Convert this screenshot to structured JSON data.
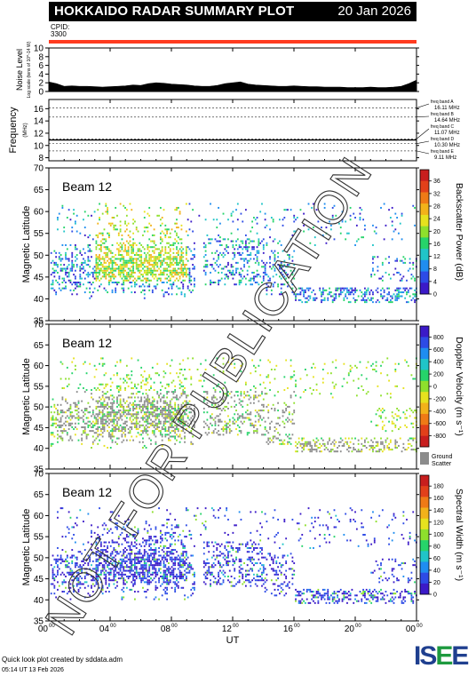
{
  "header": {
    "title": "HOKKAIDO RADAR SUMMARY PLOT",
    "date": "20 Jan 2026"
  },
  "cpid": {
    "label": "CPID:",
    "value": "3300"
  },
  "footer": {
    "credit": "Quick look plot created by sddata.adm",
    "timestamp": "05:14 UT 13 Feb 2026"
  },
  "logo": {
    "text1": "IS",
    "text2": "E",
    "text3": "E"
  },
  "watermark": "NOT FOR PUBLICATION",
  "chart_data": [
    {
      "type": "area",
      "ylabel": "Noise Level",
      "ylabel_sub": "Log scale (tens of 10^-14 W)",
      "yticks": [
        "0",
        "2",
        "4",
        "6",
        "8",
        "10"
      ],
      "ylim": [
        0,
        10
      ],
      "x": [
        0,
        0.5,
        1,
        1.5,
        2,
        2.5,
        3,
        3.5,
        4,
        4.5,
        5,
        5.5,
        6,
        6.5,
        7,
        7.5,
        8,
        8.5,
        9,
        9.5,
        10,
        10.5,
        11,
        11.5,
        12,
        12.5,
        13,
        13.5,
        14,
        14.5,
        15,
        15.5,
        16,
        16.5,
        17,
        17.5,
        18,
        18.5,
        19,
        19.5,
        20,
        20.5,
        21,
        21.5,
        22,
        22.5,
        23,
        23.5,
        24
      ],
      "values": [
        2.2,
        1.8,
        1.2,
        1.3,
        1.2,
        1.2,
        1.1,
        1.0,
        1.1,
        1.2,
        1.3,
        1.5,
        1.4,
        1.8,
        2.0,
        1.9,
        1.7,
        1.6,
        1.5,
        1.3,
        1.2,
        1.2,
        1.4,
        1.8,
        2.0,
        2.2,
        1.7,
        1.5,
        1.4,
        1.3,
        1.2,
        1.2,
        1.3,
        1.2,
        1.1,
        1.1,
        1.0,
        1.0,
        1.0,
        0.9,
        0.9,
        0.9,
        1.0,
        0.9,
        0.9,
        1.0,
        1.2,
        1.8,
        2.6
      ]
    },
    {
      "type": "line",
      "ylabel": "Frequency",
      "yunit": "(MHz)",
      "yticks": [
        "8",
        "10",
        "12",
        "14",
        "16"
      ],
      "ylim": [
        7.5,
        17.5
      ],
      "bands": [
        {
          "name": "freq band A",
          "label": "16.11 MHz",
          "value": 16.11
        },
        {
          "name": "freq band B",
          "label": "14.64 MHz",
          "value": 14.64
        },
        {
          "name": "freq band C",
          "label": "11.07 MHz",
          "value": 11.07
        },
        {
          "name": "freq band D",
          "label": "10.30 MHz",
          "value": 10.3
        },
        {
          "name": "freq band E",
          "label": "9.11 MHz",
          "value": 9.11
        }
      ],
      "observed": 10.9
    },
    {
      "type": "heatmap",
      "annotation": "Beam 12",
      "ylabel": "Magnetic Latitude",
      "yticks": [
        "35",
        "40",
        "45",
        "50",
        "55",
        "60",
        "65",
        "70"
      ],
      "ylim": [
        35,
        70
      ],
      "colorbar_label": "Backscatter Power (dB)",
      "colorbar_ticks": [
        "0",
        "4",
        "8",
        "12",
        "16",
        "20",
        "24",
        "28",
        "32",
        "36"
      ],
      "colorbar_colors": [
        "#3b1ac8",
        "#2d4be6",
        "#1f8df0",
        "#20c4c8",
        "#26d46a",
        "#8ee02c",
        "#e6e21e",
        "#f2b21a",
        "#ef7a16",
        "#e2401a",
        "#c81e1e"
      ]
    },
    {
      "type": "heatmap",
      "annotation": "Beam 12",
      "ylabel": "Magnetic Latitude",
      "yticks": [
        "35",
        "40",
        "45",
        "50",
        "55",
        "60",
        "65",
        "70"
      ],
      "ylim": [
        35,
        70
      ],
      "colorbar_label": "Doppler Velocity (m s⁻¹)",
      "colorbar_ticks": [
        "800",
        "600",
        "400",
        "200",
        "0",
        "-200",
        "-400",
        "-600",
        "-800"
      ],
      "colorbar_colors": [
        "#3b1ac8",
        "#2d4be6",
        "#1f8df0",
        "#20c4c8",
        "#26d46a",
        "#8ee02c",
        "#e6e21e",
        "#f2b21a",
        "#ef7a16",
        "#e2401a",
        "#c81e1e"
      ],
      "ground_scatter_label": "Ground Scatter",
      "ground_scatter_color": "#8c8c8c"
    },
    {
      "type": "heatmap",
      "annotation": "Beam 12",
      "ylabel": "Magnetic Latitude",
      "yticks": [
        "35",
        "40",
        "45",
        "50",
        "55",
        "60",
        "65",
        "70"
      ],
      "ylim": [
        35,
        70
      ],
      "colorbar_label": "Spectral Width (m s⁻¹)",
      "colorbar_ticks": [
        "0",
        "20",
        "40",
        "60",
        "80",
        "100",
        "120",
        "140",
        "160",
        "180"
      ],
      "colorbar_colors": [
        "#3b1ac8",
        "#2d4be6",
        "#1f8df0",
        "#20c4c8",
        "#26d46a",
        "#8ee02c",
        "#e6e21e",
        "#f2b21a",
        "#ef7a16",
        "#e2401a",
        "#c81e1e"
      ]
    }
  ],
  "xaxis": {
    "label": "UT",
    "ticks": [
      "00",
      "04",
      "08",
      "12",
      "16",
      "20",
      "00"
    ],
    "sup": "00",
    "xlim": [
      0,
      24
    ]
  }
}
